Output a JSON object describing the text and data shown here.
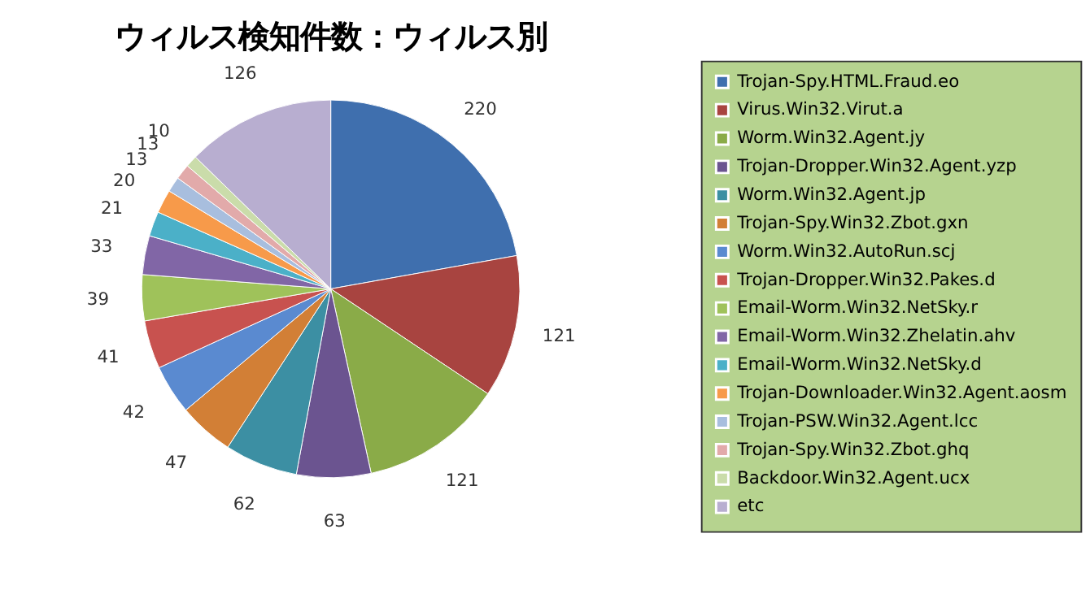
{
  "chart_data": {
    "type": "pie",
    "title": "ウィルス検知件数：ウィルス別",
    "categories": [
      "Trojan-Spy.HTML.Fraud.eo",
      "Virus.Win32.Virut.a",
      "Worm.Win32.Agent.jy",
      "Trojan-Dropper.Win32.Agent.yzp",
      "Worm.Win32.Agent.jp",
      "Trojan-Spy.Win32.Zbot.gxn",
      "Worm.Win32.AutoRun.scj",
      "Trojan-Dropper.Win32.Pakes.d",
      "Email-Worm.Win32.NetSky.r",
      "Email-Worm.Win32.Zhelatin.ahv",
      "Email-Worm.Win32.NetSky.d",
      "Trojan-Downloader.Win32.Agent.aosm",
      "Trojan-PSW.Win32.Agent.lcc",
      "Trojan-Spy.Win32.Zbot.ghq",
      "Backdoor.Win32.Agent.ucx",
      "etc"
    ],
    "values": [
      220,
      121,
      121,
      63,
      62,
      47,
      42,
      41,
      39,
      33,
      21,
      20,
      13,
      13,
      10,
      126
    ],
    "colors": [
      "#3f6fae",
      "#a84440",
      "#8aab48",
      "#6b5490",
      "#3c8fa3",
      "#d27f36",
      "#5a8ad0",
      "#c8524f",
      "#9fc25a",
      "#8166a6",
      "#4bb0c8",
      "#f79a4a",
      "#a8bede",
      "#e2aaaa",
      "#cadcaa",
      "#b8aed0"
    ],
    "data_labels": true,
    "legend": "right"
  }
}
